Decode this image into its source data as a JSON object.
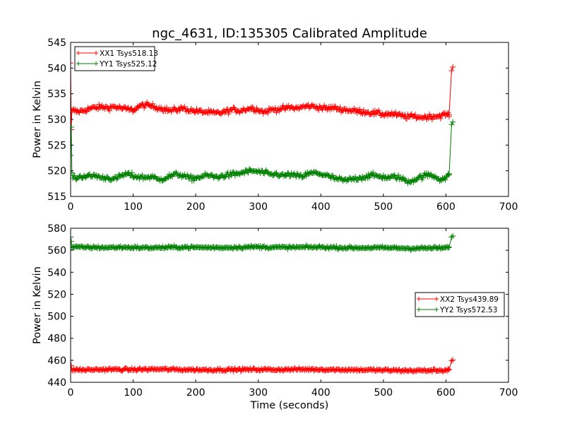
{
  "title": "ngc_4631, ID:135305 Calibrated Amplitude",
  "colors": {
    "xx": "#ff0000",
    "yy": "#008000",
    "axes": "#000000",
    "background": "#ffffff"
  },
  "chart_data": [
    {
      "type": "scatter",
      "title": "ngc_4631, ID:135305 Calibrated Amplitude",
      "xlabel": "",
      "ylabel": "Power in Kelvin",
      "xlim": [
        0,
        700
      ],
      "ylim": [
        515,
        545
      ],
      "xticks": [
        "0",
        "100",
        "200",
        "300",
        "400",
        "500",
        "600",
        "700"
      ],
      "yticks": [
        "515",
        "520",
        "525",
        "530",
        "535",
        "540",
        "545"
      ],
      "marker": "+",
      "grid": false,
      "legend_position": "top-left",
      "series": [
        {
          "name": "XX1 Tsys518.13",
          "color": "#ff0000",
          "points": [
            [
              0,
              541
            ],
            [
              1,
              528
            ],
            [
              2,
              531.5
            ],
            [
              5,
              531.8
            ],
            [
              10,
              531.5
            ],
            [
              20,
              531.7
            ],
            [
              30,
              532.1
            ],
            [
              40,
              532.3
            ],
            [
              50,
              532.4
            ],
            [
              60,
              532.3
            ],
            [
              70,
              532.5
            ],
            [
              80,
              532.2
            ],
            [
              90,
              532.0
            ],
            [
              100,
              531.8
            ],
            [
              110,
              532.6
            ],
            [
              120,
              532.8
            ],
            [
              130,
              532.6
            ],
            [
              140,
              532.3
            ],
            [
              150,
              532.0
            ],
            [
              160,
              531.7
            ],
            [
              170,
              531.9
            ],
            [
              180,
              532.2
            ],
            [
              190,
              531.8
            ],
            [
              200,
              531.6
            ],
            [
              210,
              531.5
            ],
            [
              220,
              531.4
            ],
            [
              230,
              531.2
            ],
            [
              240,
              531.3
            ],
            [
              250,
              531.6
            ],
            [
              260,
              531.9
            ],
            [
              270,
              531.7
            ],
            [
              280,
              532.0
            ],
            [
              290,
              532.2
            ],
            [
              300,
              531.9
            ],
            [
              310,
              531.4
            ],
            [
              320,
              531.9
            ],
            [
              330,
              532.0
            ],
            [
              340,
              532.1
            ],
            [
              350,
              532.3
            ],
            [
              360,
              532.2
            ],
            [
              370,
              532.4
            ],
            [
              380,
              532.6
            ],
            [
              390,
              532.5
            ],
            [
              400,
              532.3
            ],
            [
              410,
              532.1
            ],
            [
              420,
              532.3
            ],
            [
              430,
              532.0
            ],
            [
              440,
              531.9
            ],
            [
              450,
              531.7
            ],
            [
              460,
              531.6
            ],
            [
              470,
              531.5
            ],
            [
              480,
              531.3
            ],
            [
              490,
              531.2
            ],
            [
              500,
              531.0
            ],
            [
              510,
              531.1
            ],
            [
              520,
              530.9
            ],
            [
              530,
              530.7
            ],
            [
              540,
              530.5
            ],
            [
              550,
              530.6
            ],
            [
              560,
              530.4
            ],
            [
              570,
              530.5
            ],
            [
              580,
              530.6
            ],
            [
              590,
              530.7
            ],
            [
              600,
              531.0
            ],
            [
              605,
              530.9
            ],
            [
              609,
              539.5
            ],
            [
              611,
              540.2
            ]
          ]
        },
        {
          "name": "YY1 Tsys525.12",
          "color": "#008000",
          "points": [
            [
              0,
              523
            ],
            [
              1,
              528.5
            ],
            [
              2,
              519
            ],
            [
              5,
              518.8
            ],
            [
              10,
              518.6
            ],
            [
              20,
              519.0
            ],
            [
              30,
              518.9
            ],
            [
              40,
              519.1
            ],
            [
              50,
              518.6
            ],
            [
              60,
              518.7
            ],
            [
              70,
              518.3
            ],
            [
              80,
              519.0
            ],
            [
              90,
              519.4
            ],
            [
              100,
              519.0
            ],
            [
              110,
              518.8
            ],
            [
              120,
              518.7
            ],
            [
              130,
              518.9
            ],
            [
              140,
              518.2
            ],
            [
              150,
              518.6
            ],
            [
              160,
              519.0
            ],
            [
              170,
              519.3
            ],
            [
              180,
              519.1
            ],
            [
              190,
              518.5
            ],
            [
              200,
              518.6
            ],
            [
              210,
              518.9
            ],
            [
              220,
              519.1
            ],
            [
              230,
              518.8
            ],
            [
              240,
              518.9
            ],
            [
              250,
              519.2
            ],
            [
              260,
              519.3
            ],
            [
              270,
              519.5
            ],
            [
              280,
              519.8
            ],
            [
              290,
              520.0
            ],
            [
              300,
              519.8
            ],
            [
              310,
              519.6
            ],
            [
              320,
              519.2
            ],
            [
              330,
              519.4
            ],
            [
              340,
              519.0
            ],
            [
              350,
              519.3
            ],
            [
              360,
              519.0
            ],
            [
              370,
              518.9
            ],
            [
              380,
              519.4
            ],
            [
              390,
              519.6
            ],
            [
              400,
              519.4
            ],
            [
              410,
              519.0
            ],
            [
              420,
              518.6
            ],
            [
              430,
              518.3
            ],
            [
              440,
              518.1
            ],
            [
              450,
              518.4
            ],
            [
              460,
              518.6
            ],
            [
              470,
              518.8
            ],
            [
              480,
              519.1
            ],
            [
              490,
              519.0
            ],
            [
              500,
              518.8
            ],
            [
              510,
              518.6
            ],
            [
              520,
              518.9
            ],
            [
              530,
              518.4
            ],
            [
              540,
              517.9
            ],
            [
              550,
              518.3
            ],
            [
              560,
              518.8
            ],
            [
              570,
              519.2
            ],
            [
              580,
              519.0
            ],
            [
              590,
              518.4
            ],
            [
              600,
              518.6
            ],
            [
              605,
              519.2
            ],
            [
              609,
              529.0
            ],
            [
              611,
              529.5
            ]
          ]
        }
      ]
    },
    {
      "type": "scatter",
      "title": "",
      "xlabel": "Time (seconds)",
      "ylabel": "Power in Kelvin",
      "xlim": [
        0,
        700
      ],
      "ylim": [
        440,
        580
      ],
      "xticks": [
        "0",
        "100",
        "200",
        "300",
        "400",
        "500",
        "600",
        "700"
      ],
      "yticks": [
        "440",
        "460",
        "480",
        "500",
        "520",
        "540",
        "560",
        "580"
      ],
      "marker": "+",
      "grid": false,
      "legend_position": "center-right",
      "series": [
        {
          "name": "XX2 Tsys439.89",
          "color": "#ff0000",
          "points": [
            [
              0,
              460
            ],
            [
              1,
              455
            ],
            [
              2,
              451.5
            ],
            [
              5,
              451.5
            ],
            [
              20,
              451.3
            ],
            [
              40,
              451.5
            ],
            [
              60,
              451.7
            ],
            [
              80,
              451.6
            ],
            [
              100,
              451.5
            ],
            [
              120,
              451.8
            ],
            [
              140,
              451.9
            ],
            [
              160,
              451.7
            ],
            [
              180,
              451.5
            ],
            [
              200,
              451.4
            ],
            [
              220,
              451.3
            ],
            [
              240,
              451.4
            ],
            [
              260,
              451.5
            ],
            [
              280,
              451.6
            ],
            [
              300,
              451.7
            ],
            [
              320,
              451.5
            ],
            [
              340,
              451.6
            ],
            [
              360,
              451.7
            ],
            [
              380,
              451.8
            ],
            [
              400,
              451.7
            ],
            [
              420,
              451.5
            ],
            [
              440,
              451.4
            ],
            [
              460,
              451.3
            ],
            [
              480,
              451.2
            ],
            [
              500,
              451.0
            ],
            [
              520,
              450.8
            ],
            [
              540,
              450.6
            ],
            [
              560,
              450.7
            ],
            [
              580,
              450.8
            ],
            [
              600,
              451.0
            ],
            [
              605,
              451.5
            ],
            [
              609,
              459.5
            ],
            [
              611,
              460.3
            ]
          ]
        },
        {
          "name": "YY2 Tsys572.53",
          "color": "#008000",
          "points": [
            [
              0,
              572
            ],
            [
              1,
              568
            ],
            [
              2,
              563
            ],
            [
              5,
              562.8
            ],
            [
              20,
              562.7
            ],
            [
              40,
              562.6
            ],
            [
              60,
              562.4
            ],
            [
              80,
              562.7
            ],
            [
              100,
              562.5
            ],
            [
              120,
              562.3
            ],
            [
              140,
              562.4
            ],
            [
              160,
              562.6
            ],
            [
              180,
              562.8
            ],
            [
              200,
              562.6
            ],
            [
              220,
              562.5
            ],
            [
              240,
              562.4
            ],
            [
              260,
              562.6
            ],
            [
              280,
              562.8
            ],
            [
              300,
              563.1
            ],
            [
              320,
              562.7
            ],
            [
              340,
              562.6
            ],
            [
              360,
              562.7
            ],
            [
              380,
              562.8
            ],
            [
              400,
              562.8
            ],
            [
              420,
              562.5
            ],
            [
              440,
              562.3
            ],
            [
              460,
              562.2
            ],
            [
              480,
              562.3
            ],
            [
              500,
              562.2
            ],
            [
              520,
              562.1
            ],
            [
              540,
              561.8
            ],
            [
              560,
              561.9
            ],
            [
              580,
              562.0
            ],
            [
              600,
              562.2
            ],
            [
              605,
              562.8
            ],
            [
              609,
              572.0
            ],
            [
              611,
              573.0
            ]
          ]
        }
      ]
    }
  ]
}
